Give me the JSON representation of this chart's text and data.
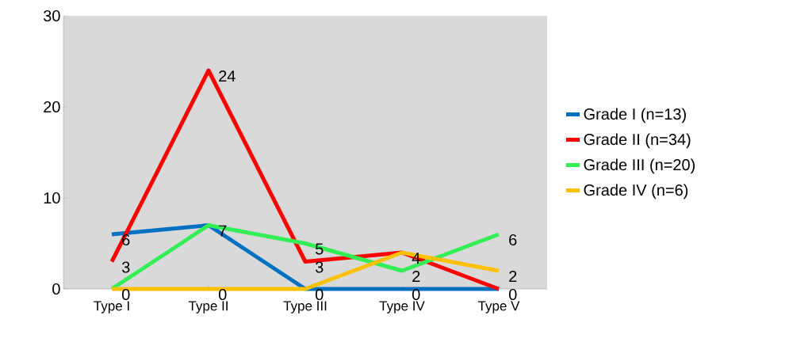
{
  "chart_data": {
    "type": "line",
    "categories": [
      "Type I",
      "Type II",
      "Type III",
      "Type IV",
      "Type V"
    ],
    "series": [
      {
        "name": "Grade I (n=13)",
        "color": "#0070c0",
        "values": [
          6,
          7,
          0,
          0,
          0
        ],
        "value_labels": [
          "6",
          null,
          "0",
          "0",
          "0"
        ]
      },
      {
        "name": "Grade II (n=34)",
        "color": "#ff0000",
        "values": [
          3,
          24,
          3,
          4,
          0
        ],
        "value_labels": [
          "3",
          "24",
          "3",
          "4",
          null
        ]
      },
      {
        "name": "Grade III (n=20)",
        "color": "#33ee55",
        "values": [
          0,
          7,
          5,
          2,
          6
        ],
        "value_labels": [
          "0",
          "7",
          "5",
          "2",
          "6"
        ]
      },
      {
        "name": "Grade IV (n=6)",
        "color": "#ffc000",
        "values": [
          0,
          0,
          0,
          4,
          2
        ],
        "value_labels": [
          null,
          "0",
          null,
          null,
          "2"
        ]
      }
    ],
    "ylim": [
      0,
      30
    ],
    "yticks": [
      0,
      10,
      20,
      30
    ],
    "legend": "right",
    "marker": "none",
    "line_style": "solid"
  }
}
